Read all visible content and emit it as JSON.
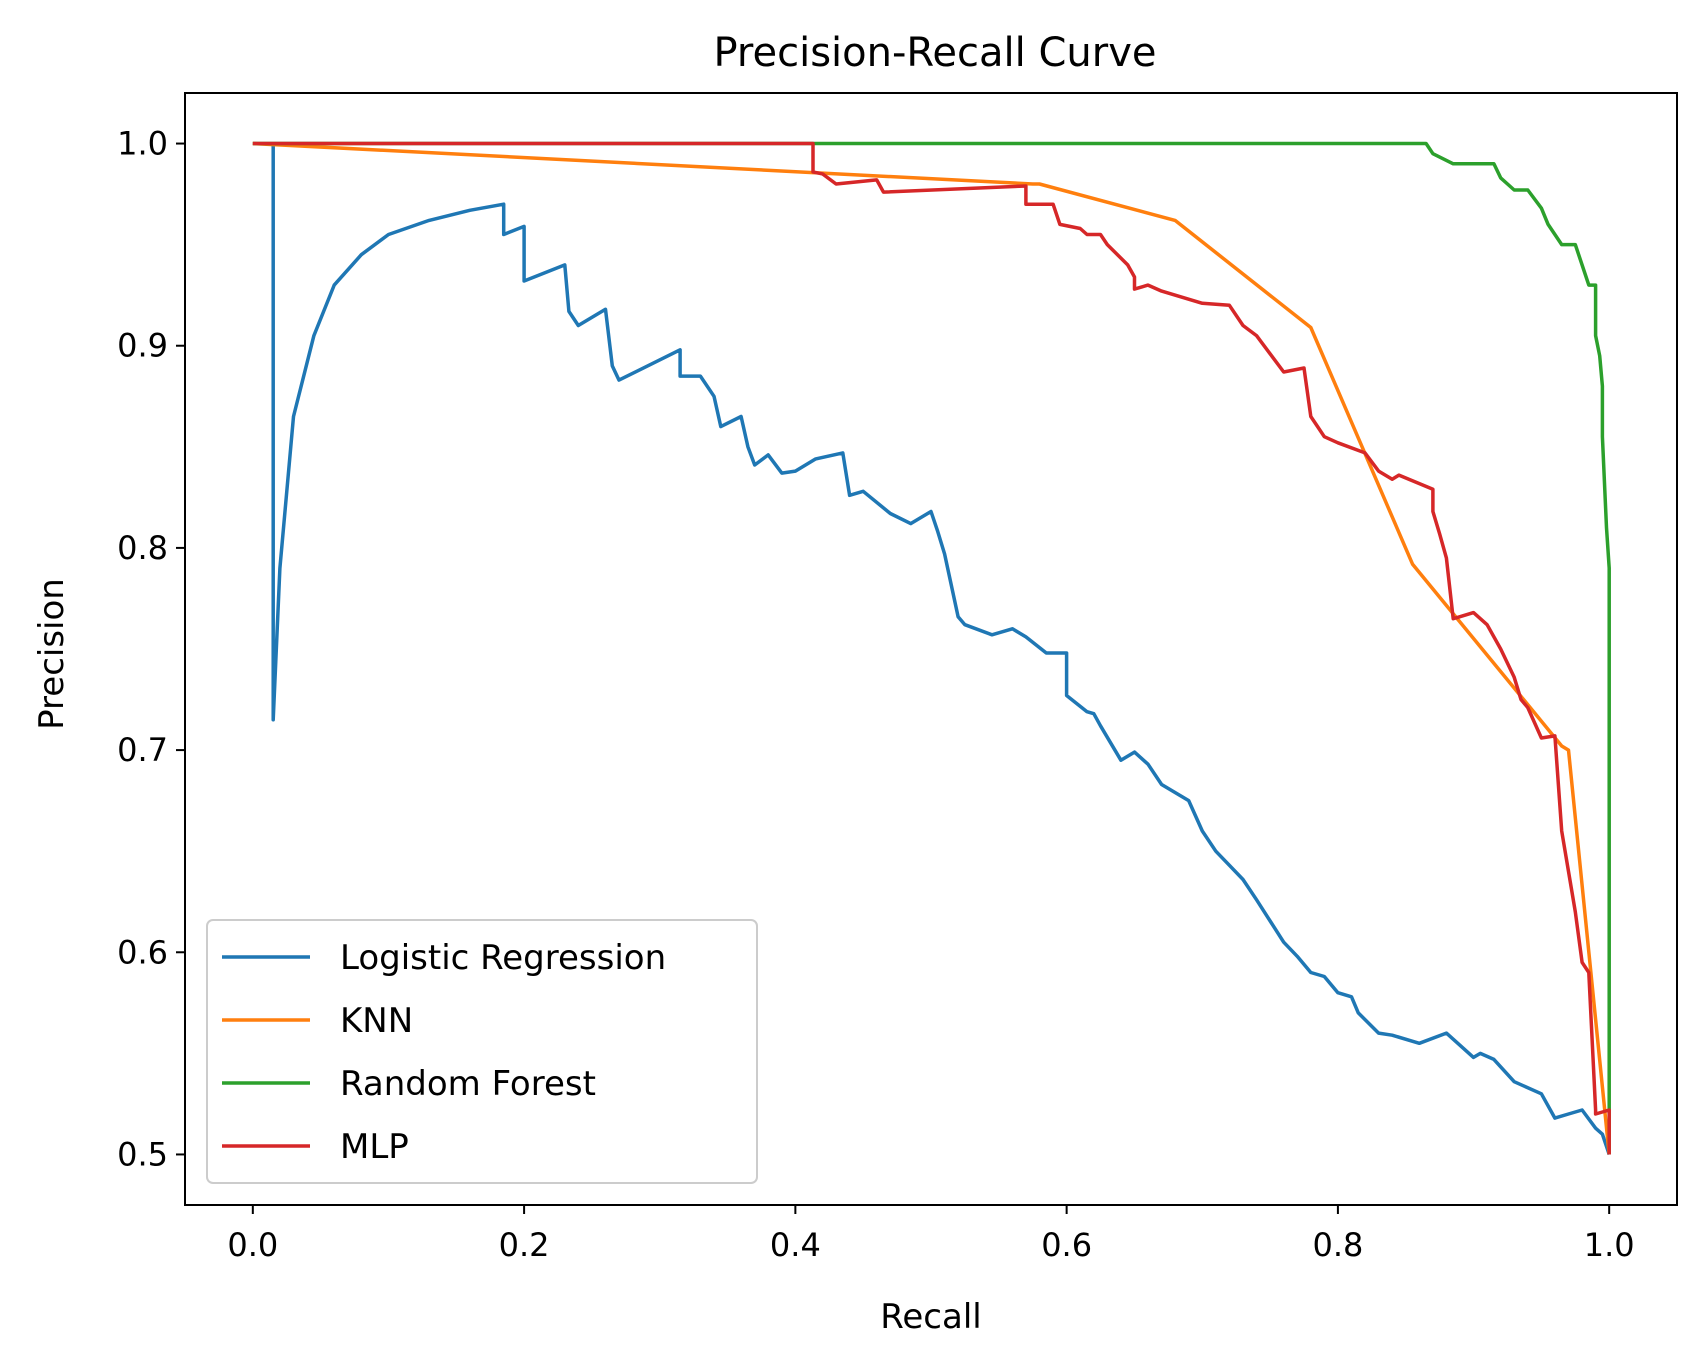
{
  "chart_data": {
    "type": "line",
    "title": "Precision-Recall Curve",
    "xlabel": "Recall",
    "ylabel": "Precision",
    "xlim": [
      -0.05,
      1.05
    ],
    "ylim": [
      0.475,
      1.025
    ],
    "xticks": [
      0.0,
      0.2,
      0.4,
      0.6,
      0.8,
      1.0
    ],
    "xtick_labels": [
      "0.0",
      "0.2",
      "0.4",
      "0.6",
      "0.8",
      "1.0"
    ],
    "yticks": [
      0.5,
      0.6,
      0.7,
      0.8,
      0.9,
      1.0
    ],
    "ytick_labels": [
      "0.5",
      "0.6",
      "0.7",
      "0.8",
      "0.9",
      "1.0"
    ],
    "grid": false,
    "legend_position": "lower-left",
    "series": [
      {
        "name": "Logistic Regression",
        "color": "#1f77b4",
        "x": [
          0.015,
          0.015,
          0.015,
          0.02,
          0.03,
          0.045,
          0.06,
          0.08,
          0.1,
          0.13,
          0.16,
          0.185,
          0.185,
          0.2,
          0.2,
          0.23,
          0.233,
          0.24,
          0.24,
          0.26,
          0.265,
          0.27,
          0.27,
          0.315,
          0.315,
          0.33,
          0.34,
          0.345,
          0.36,
          0.365,
          0.37,
          0.38,
          0.39,
          0.4,
          0.415,
          0.435,
          0.44,
          0.45,
          0.47,
          0.485,
          0.5,
          0.505,
          0.51,
          0.52,
          0.525,
          0.545,
          0.56,
          0.57,
          0.585,
          0.6,
          0.6,
          0.615,
          0.62,
          0.625,
          0.64,
          0.65,
          0.66,
          0.67,
          0.69,
          0.7,
          0.71,
          0.72,
          0.73,
          0.74,
          0.76,
          0.77,
          0.78,
          0.79,
          0.8,
          0.81,
          0.815,
          0.83,
          0.84,
          0.86,
          0.88,
          0.885,
          0.9,
          0.905,
          0.915,
          0.93,
          0.95,
          0.96,
          0.97,
          0.98,
          0.99,
          0.995,
          1.0
        ],
        "y": [
          1.0,
          0.715,
          0.715,
          0.79,
          0.865,
          0.905,
          0.93,
          0.945,
          0.955,
          0.962,
          0.967,
          0.97,
          0.955,
          0.959,
          0.932,
          0.94,
          0.917,
          0.91,
          0.91,
          0.918,
          0.89,
          0.883,
          0.883,
          0.898,
          0.885,
          0.885,
          0.875,
          0.86,
          0.865,
          0.85,
          0.841,
          0.846,
          0.837,
          0.838,
          0.844,
          0.847,
          0.826,
          0.828,
          0.817,
          0.812,
          0.818,
          0.808,
          0.797,
          0.766,
          0.762,
          0.757,
          0.76,
          0.756,
          0.748,
          0.748,
          0.727,
          0.719,
          0.718,
          0.712,
          0.695,
          0.699,
          0.693,
          0.683,
          0.675,
          0.66,
          0.65,
          0.643,
          0.636,
          0.626,
          0.605,
          0.598,
          0.59,
          0.588,
          0.58,
          0.578,
          0.57,
          0.56,
          0.559,
          0.555,
          0.56,
          0.557,
          0.548,
          0.55,
          0.547,
          0.536,
          0.53,
          0.518,
          0.52,
          0.522,
          0.513,
          0.51,
          0.5
        ]
      },
      {
        "name": "KNN",
        "color": "#ff7f0e",
        "x": [
          0.0,
          0.575,
          0.58,
          0.68,
          0.78,
          0.855,
          0.965,
          0.97,
          1.0
        ],
        "y": [
          1.0,
          0.98,
          0.98,
          0.962,
          0.909,
          0.792,
          0.702,
          0.7,
          0.5
        ]
      },
      {
        "name": "Random Forest",
        "color": "#2ca02c",
        "x": [
          0.0,
          0.865,
          0.87,
          0.885,
          0.9,
          0.915,
          0.92,
          0.925,
          0.93,
          0.94,
          0.95,
          0.955,
          0.96,
          0.965,
          0.975,
          0.98,
          0.985,
          0.99,
          0.99,
          0.993,
          0.995,
          0.995,
          0.998,
          1.0,
          1.0
        ],
        "y": [
          1.0,
          1.0,
          0.995,
          0.99,
          0.99,
          0.99,
          0.983,
          0.98,
          0.977,
          0.977,
          0.968,
          0.96,
          0.955,
          0.95,
          0.95,
          0.94,
          0.93,
          0.93,
          0.905,
          0.895,
          0.88,
          0.855,
          0.81,
          0.79,
          0.5
        ]
      },
      {
        "name": "MLP",
        "color": "#d62728",
        "x": [
          0.0,
          0.41,
          0.413,
          0.413,
          0.42,
          0.43,
          0.46,
          0.465,
          0.57,
          0.57,
          0.59,
          0.595,
          0.61,
          0.615,
          0.625,
          0.63,
          0.645,
          0.65,
          0.65,
          0.66,
          0.67,
          0.7,
          0.72,
          0.73,
          0.74,
          0.75,
          0.76,
          0.775,
          0.78,
          0.785,
          0.79,
          0.8,
          0.82,
          0.83,
          0.84,
          0.845,
          0.87,
          0.87,
          0.875,
          0.88,
          0.885,
          0.89,
          0.9,
          0.91,
          0.92,
          0.93,
          0.935,
          0.94,
          0.95,
          0.96,
          0.965,
          0.97,
          0.975,
          0.98,
          0.985,
          0.99,
          0.99,
          1.0,
          1.0
        ],
        "y": [
          1.0,
          1.0,
          1.0,
          0.986,
          0.985,
          0.98,
          0.982,
          0.976,
          0.979,
          0.97,
          0.97,
          0.96,
          0.958,
          0.955,
          0.955,
          0.95,
          0.94,
          0.934,
          0.928,
          0.93,
          0.927,
          0.921,
          0.92,
          0.91,
          0.905,
          0.896,
          0.887,
          0.889,
          0.865,
          0.86,
          0.855,
          0.852,
          0.847,
          0.838,
          0.834,
          0.836,
          0.829,
          0.818,
          0.807,
          0.795,
          0.765,
          0.766,
          0.768,
          0.762,
          0.75,
          0.736,
          0.725,
          0.721,
          0.706,
          0.707,
          0.66,
          0.64,
          0.62,
          0.595,
          0.59,
          0.522,
          0.52,
          0.522,
          0.5
        ]
      }
    ]
  }
}
